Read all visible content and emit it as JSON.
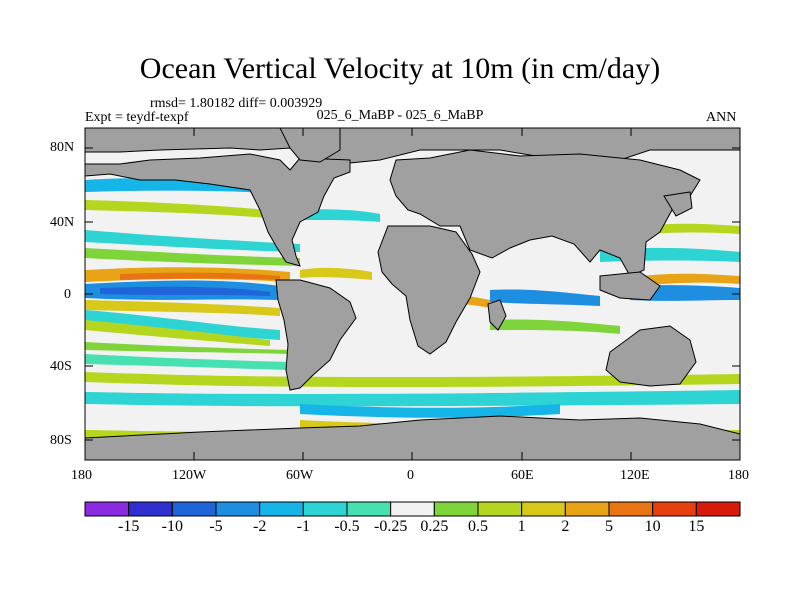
{
  "title": "Ocean Vertical Velocity at 10m (in cm/day)",
  "stats": "rmsd= 1.80182  diff= 0.003929",
  "experiment": "Expt = teydf-texpf",
  "case": "025_6_MaBP - 025_6_MaBP",
  "season": "ANN",
  "lat_ticks": [
    "80N",
    "40N",
    "0",
    "40S",
    "80S"
  ],
  "lon_ticks": [
    "180",
    "120W",
    "60W",
    "0",
    "60E",
    "120E",
    "180"
  ],
  "colorbar": {
    "labels": [
      "-15",
      "-10",
      "-5",
      "-2",
      "-1",
      "-0.5",
      "-0.25",
      "0.25",
      "0.5",
      "1",
      "2",
      "5",
      "10",
      "15"
    ],
    "colors": [
      "#8a2be2",
      "#2f2fd0",
      "#1f64d8",
      "#1e8fe0",
      "#16b5e8",
      "#2ed3d3",
      "#47e0b0",
      "#f2f2f2",
      "#7fd43a",
      "#b5d61e",
      "#d8c81a",
      "#e8a416",
      "#e87412",
      "#e6400e",
      "#d81a0a"
    ]
  },
  "colors": {
    "land": "#a0a0a0",
    "background_ocean": "#f2f2f2"
  }
}
